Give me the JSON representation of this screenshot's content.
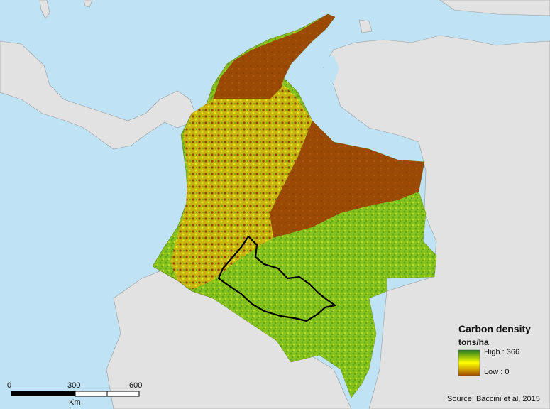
{
  "legend": {
    "title": "Carbon density",
    "unit": "tons/ha",
    "high_label": "High : 366",
    "low_label": "Low : 0",
    "colors": {
      "high": "#1f7a1f",
      "mid": "#ffff00",
      "low": "#a34a00"
    }
  },
  "scalebar": {
    "ticks": [
      "0",
      "300",
      "600"
    ],
    "unit": "Km"
  },
  "source": "Source: Baccini et al, 2015",
  "colors": {
    "ocean": "#bfe3f5",
    "land_neighbor": "#e2e2e2",
    "country_brown": "#9a4a05",
    "country_green": "#7fbf1f",
    "country_yellow": "#d8e020",
    "watershed_outline": "#000000"
  }
}
